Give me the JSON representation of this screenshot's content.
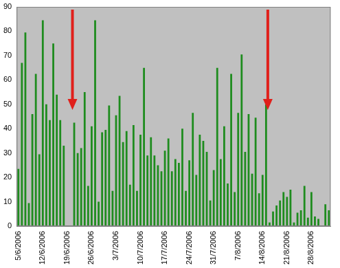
{
  "chart_data": {
    "type": "bar",
    "categories": [
      "5/6/2006",
      null,
      null,
      null,
      null,
      null,
      null,
      "12/6/2006",
      null,
      null,
      null,
      null,
      null,
      null,
      "19/6/2006",
      null,
      null,
      null,
      null,
      null,
      null,
      "26/6/2006",
      null,
      null,
      null,
      null,
      null,
      null,
      "3/7/2006",
      null,
      null,
      null,
      null,
      null,
      null,
      "10/7/2006",
      null,
      null,
      null,
      null,
      null,
      null,
      "17/7/2006",
      null,
      null,
      null,
      null,
      null,
      null,
      "24/7/2006",
      null,
      null,
      null,
      null,
      null,
      null,
      "31/7/2006",
      null,
      null,
      null,
      null,
      null,
      null,
      "7/8/2006",
      null,
      null,
      null,
      null,
      null,
      null,
      "14/8/2006",
      null,
      null,
      null,
      null,
      null,
      null,
      "21/8/2006",
      null,
      null,
      null,
      null,
      null,
      null,
      "28/8/2006",
      null,
      null,
      null,
      null,
      null
    ],
    "values": [
      23.5,
      67,
      79.5,
      9.5,
      46,
      62.5,
      29.5,
      84.5,
      50,
      43.5,
      75,
      54,
      43.5,
      33,
      null,
      null,
      42.5,
      30,
      32,
      55,
      16.5,
      41,
      84.5,
      10,
      38.5,
      39.5,
      49.5,
      14.5,
      45.5,
      53.5,
      34.5,
      39,
      17,
      41.5,
      14.5,
      37.5,
      65,
      29,
      36.5,
      29,
      25,
      22.5,
      31,
      36,
      22.5,
      27.5,
      26,
      40,
      14.5,
      27,
      46.5,
      21,
      37.5,
      35,
      30.5,
      10.5,
      23,
      65,
      27.5,
      41,
      17.5,
      62.5,
      14,
      46.5,
      70.5,
      30.5,
      46,
      21.5,
      44.5,
      13.5,
      21,
      50,
      1.5,
      6,
      8.5,
      10.5,
      14,
      12,
      15,
      1.5,
      5.5,
      6.5,
      16.5,
      3.5,
      14,
      4,
      3,
      0,
      9,
      6.5
    ],
    "color": "#1e8c1e",
    "ylim": [
      0,
      90
    ],
    "yticks": [
      0,
      10,
      20,
      30,
      40,
      50,
      60,
      70,
      80,
      90
    ],
    "grid": false
  }
}
